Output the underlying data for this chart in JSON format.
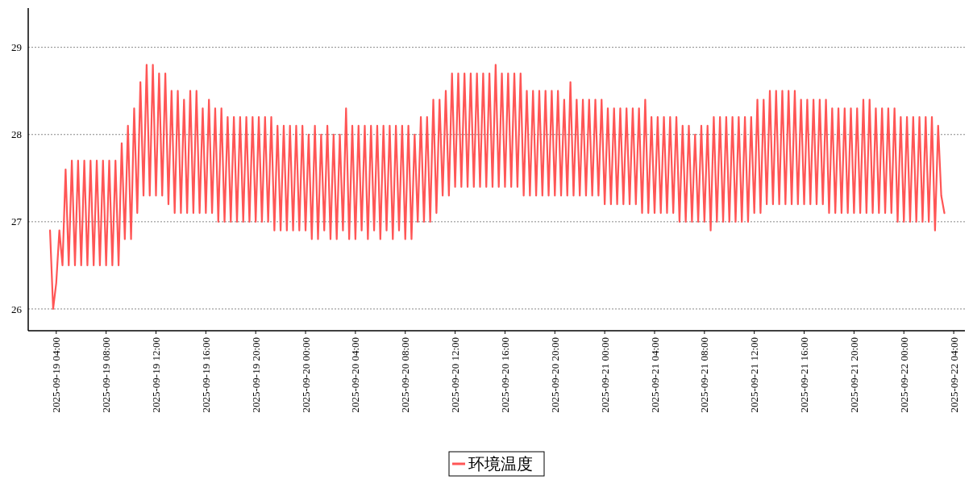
{
  "chart_data": {
    "type": "line",
    "x": [
      "2025-09-19T03:30",
      "2025-09-19T03:45",
      "2025-09-19T04:00",
      "2025-09-19T04:15",
      "2025-09-19T04:30",
      "2025-09-19T04:45",
      "2025-09-19T05:00",
      "2025-09-19T05:15",
      "2025-09-19T05:30",
      "2025-09-19T05:45",
      "2025-09-19T06:00",
      "2025-09-19T06:15",
      "2025-09-19T06:30",
      "2025-09-19T06:45",
      "2025-09-19T07:00",
      "2025-09-19T07:15",
      "2025-09-19T07:30",
      "2025-09-19T07:45",
      "2025-09-19T08:00",
      "2025-09-19T08:15",
      "2025-09-19T08:30",
      "2025-09-19T08:45",
      "2025-09-19T09:00",
      "2025-09-19T09:15",
      "2025-09-19T09:30",
      "2025-09-19T09:45",
      "2025-09-19T10:00",
      "2025-09-19T10:15",
      "2025-09-19T10:30",
      "2025-09-19T10:45",
      "2025-09-19T11:00",
      "2025-09-19T11:15",
      "2025-09-19T11:30",
      "2025-09-19T11:45",
      "2025-09-19T12:00",
      "2025-09-19T12:15",
      "2025-09-19T12:30",
      "2025-09-19T12:45",
      "2025-09-19T13:00",
      "2025-09-19T13:15",
      "2025-09-19T13:30",
      "2025-09-19T13:45",
      "2025-09-19T14:00",
      "2025-09-19T14:15",
      "2025-09-19T14:30",
      "2025-09-19T14:45",
      "2025-09-19T15:00",
      "2025-09-19T15:15",
      "2025-09-19T15:30",
      "2025-09-19T15:45",
      "2025-09-19T16:00",
      "2025-09-19T16:15",
      "2025-09-19T16:30",
      "2025-09-19T16:45",
      "2025-09-19T17:00",
      "2025-09-19T17:15",
      "2025-09-19T17:30",
      "2025-09-19T17:45",
      "2025-09-19T18:00",
      "2025-09-19T18:15",
      "2025-09-19T18:30",
      "2025-09-19T18:45",
      "2025-09-19T19:00",
      "2025-09-19T19:15",
      "2025-09-19T19:30",
      "2025-09-19T19:45",
      "2025-09-19T20:00",
      "2025-09-19T20:15",
      "2025-09-19T20:30",
      "2025-09-19T20:45",
      "2025-09-19T21:00",
      "2025-09-19T21:15",
      "2025-09-19T21:30",
      "2025-09-19T21:45",
      "2025-09-19T22:00",
      "2025-09-19T22:15",
      "2025-09-19T22:30",
      "2025-09-19T22:45",
      "2025-09-19T23:00",
      "2025-09-19T23:15",
      "2025-09-19T23:30",
      "2025-09-19T23:45",
      "2025-09-20T00:00",
      "2025-09-20T00:15",
      "2025-09-20T00:30",
      "2025-09-20T00:45",
      "2025-09-20T01:00",
      "2025-09-20T01:15",
      "2025-09-20T01:30",
      "2025-09-20T01:45",
      "2025-09-20T02:00",
      "2025-09-20T02:15",
      "2025-09-20T02:30",
      "2025-09-20T02:45",
      "2025-09-20T03:00",
      "2025-09-20T03:15",
      "2025-09-20T03:30",
      "2025-09-20T03:45",
      "2025-09-20T04:00",
      "2025-09-20T04:15",
      "2025-09-20T04:30",
      "2025-09-20T04:45",
      "2025-09-20T05:00",
      "2025-09-20T05:15",
      "2025-09-20T05:30",
      "2025-09-20T05:45",
      "2025-09-20T06:00",
      "2025-09-20T06:15",
      "2025-09-20T06:30",
      "2025-09-20T06:45",
      "2025-09-20T07:00",
      "2025-09-20T07:15",
      "2025-09-20T07:30",
      "2025-09-20T07:45",
      "2025-09-20T08:00",
      "2025-09-20T08:15",
      "2025-09-20T08:30",
      "2025-09-20T08:45",
      "2025-09-20T09:00",
      "2025-09-20T09:15",
      "2025-09-20T09:30",
      "2025-09-20T09:45",
      "2025-09-20T10:00",
      "2025-09-20T10:15",
      "2025-09-20T10:30",
      "2025-09-20T10:45",
      "2025-09-20T11:00",
      "2025-09-20T11:15",
      "2025-09-20T11:30",
      "2025-09-20T11:45",
      "2025-09-20T12:00",
      "2025-09-20T12:15",
      "2025-09-20T12:30",
      "2025-09-20T12:45",
      "2025-09-20T13:00",
      "2025-09-20T13:15",
      "2025-09-20T13:30",
      "2025-09-20T13:45",
      "2025-09-20T14:00",
      "2025-09-20T14:15",
      "2025-09-20T14:30",
      "2025-09-20T14:45",
      "2025-09-20T15:00",
      "2025-09-20T15:15",
      "2025-09-20T15:30",
      "2025-09-20T15:45",
      "2025-09-20T16:00",
      "2025-09-20T16:15",
      "2025-09-20T16:30",
      "2025-09-20T16:45",
      "2025-09-20T17:00",
      "2025-09-20T17:15",
      "2025-09-20T17:30",
      "2025-09-20T17:45",
      "2025-09-20T18:00",
      "2025-09-20T18:15",
      "2025-09-20T18:30",
      "2025-09-20T18:45",
      "2025-09-20T19:00",
      "2025-09-20T19:15",
      "2025-09-20T19:30",
      "2025-09-20T19:45",
      "2025-09-20T20:00",
      "2025-09-20T20:15",
      "2025-09-20T20:30",
      "2025-09-20T20:45",
      "2025-09-20T21:00",
      "2025-09-20T21:15",
      "2025-09-20T21:30",
      "2025-09-20T21:45",
      "2025-09-20T22:00",
      "2025-09-20T22:15",
      "2025-09-20T22:30",
      "2025-09-20T22:45",
      "2025-09-20T23:00",
      "2025-09-20T23:15",
      "2025-09-20T23:30",
      "2025-09-20T23:45",
      "2025-09-21T00:00",
      "2025-09-21T00:15",
      "2025-09-21T00:30",
      "2025-09-21T00:45",
      "2025-09-21T01:00",
      "2025-09-21T01:15",
      "2025-09-21T01:30",
      "2025-09-21T01:45",
      "2025-09-21T02:00",
      "2025-09-21T02:15",
      "2025-09-21T02:30",
      "2025-09-21T02:45",
      "2025-09-21T03:00",
      "2025-09-21T03:15",
      "2025-09-21T03:30",
      "2025-09-21T03:45",
      "2025-09-21T04:00",
      "2025-09-21T04:15",
      "2025-09-21T04:30",
      "2025-09-21T04:45",
      "2025-09-21T05:00",
      "2025-09-21T05:15",
      "2025-09-21T05:30",
      "2025-09-21T05:45",
      "2025-09-21T06:00",
      "2025-09-21T06:15",
      "2025-09-21T06:30",
      "2025-09-21T06:45",
      "2025-09-21T07:00",
      "2025-09-21T07:15",
      "2025-09-21T07:30",
      "2025-09-21T07:45",
      "2025-09-21T08:00",
      "2025-09-21T08:15",
      "2025-09-21T08:30",
      "2025-09-21T08:45",
      "2025-09-21T09:00",
      "2025-09-21T09:15",
      "2025-09-21T09:30",
      "2025-09-21T09:45",
      "2025-09-21T10:00",
      "2025-09-21T10:15",
      "2025-09-21T10:30",
      "2025-09-21T10:45",
      "2025-09-21T11:00",
      "2025-09-21T11:15",
      "2025-09-21T11:30",
      "2025-09-21T11:45",
      "2025-09-21T12:00",
      "2025-09-21T12:15",
      "2025-09-21T12:30",
      "2025-09-21T12:45",
      "2025-09-21T13:00",
      "2025-09-21T13:15",
      "2025-09-21T13:30",
      "2025-09-21T13:45",
      "2025-09-21T14:00",
      "2025-09-21T14:15",
      "2025-09-21T14:30",
      "2025-09-21T14:45",
      "2025-09-21T15:00",
      "2025-09-21T15:15",
      "2025-09-21T15:30",
      "2025-09-21T15:45",
      "2025-09-21T16:00",
      "2025-09-21T16:15",
      "2025-09-21T16:30",
      "2025-09-21T16:45",
      "2025-09-21T17:00",
      "2025-09-21T17:15",
      "2025-09-21T17:30",
      "2025-09-21T17:45",
      "2025-09-21T18:00",
      "2025-09-21T18:15",
      "2025-09-21T18:30",
      "2025-09-21T18:45",
      "2025-09-21T19:00",
      "2025-09-21T19:15",
      "2025-09-21T19:30",
      "2025-09-21T19:45",
      "2025-09-21T20:00",
      "2025-09-21T20:15",
      "2025-09-21T20:30",
      "2025-09-21T20:45",
      "2025-09-21T21:00",
      "2025-09-21T21:15",
      "2025-09-21T21:30",
      "2025-09-21T21:45",
      "2025-09-21T22:00",
      "2025-09-21T22:15",
      "2025-09-21T22:30",
      "2025-09-21T22:45",
      "2025-09-21T23:00",
      "2025-09-21T23:15",
      "2025-09-21T23:30",
      "2025-09-21T23:45",
      "2025-09-22T00:00",
      "2025-09-22T00:15",
      "2025-09-22T00:30",
      "2025-09-22T00:45",
      "2025-09-22T01:00",
      "2025-09-22T01:15",
      "2025-09-22T01:30",
      "2025-09-22T01:45",
      "2025-09-22T02:00",
      "2025-09-22T02:15",
      "2025-09-22T02:30",
      "2025-09-22T02:45",
      "2025-09-22T03:00",
      "2025-09-22T03:15"
    ],
    "series": [
      {
        "name": "环境温度",
        "color": "#ff5555",
        "values": [
          26.9,
          26.0,
          26.3,
          26.9,
          26.5,
          27.6,
          26.5,
          27.7,
          26.5,
          27.7,
          26.5,
          27.7,
          26.5,
          27.7,
          26.5,
          27.7,
          26.5,
          27.7,
          26.5,
          27.7,
          26.5,
          27.7,
          26.5,
          27.9,
          26.8,
          28.1,
          26.8,
          28.3,
          27.1,
          28.6,
          27.3,
          28.8,
          27.3,
          28.8,
          27.3,
          28.7,
          27.3,
          28.7,
          27.2,
          28.5,
          27.1,
          28.5,
          27.1,
          28.4,
          27.1,
          28.5,
          27.1,
          28.5,
          27.1,
          28.3,
          27.1,
          28.4,
          27.1,
          28.3,
          27.0,
          28.3,
          27.0,
          28.2,
          27.0,
          28.2,
          27.0,
          28.2,
          27.0,
          28.2,
          27.0,
          28.2,
          27.0,
          28.2,
          27.0,
          28.2,
          27.0,
          28.2,
          26.9,
          28.1,
          26.9,
          28.1,
          26.9,
          28.1,
          26.9,
          28.1,
          26.9,
          28.1,
          26.9,
          28.0,
          26.8,
          28.1,
          26.8,
          28.0,
          26.9,
          28.1,
          26.8,
          28.0,
          26.8,
          28.0,
          26.9,
          28.3,
          26.8,
          28.1,
          26.8,
          28.1,
          26.9,
          28.1,
          26.8,
          28.1,
          26.9,
          28.1,
          26.8,
          28.1,
          26.9,
          28.1,
          26.8,
          28.1,
          26.9,
          28.1,
          26.8,
          28.1,
          26.8,
          28.0,
          27.0,
          28.2,
          27.0,
          28.2,
          27.0,
          28.4,
          27.1,
          28.4,
          27.3,
          28.5,
          27.3,
          28.7,
          27.4,
          28.7,
          27.4,
          28.7,
          27.4,
          28.7,
          27.4,
          28.7,
          27.4,
          28.7,
          27.4,
          28.7,
          27.4,
          28.8,
          27.4,
          28.7,
          27.4,
          28.7,
          27.4,
          28.7,
          27.4,
          28.7,
          27.3,
          28.5,
          27.3,
          28.5,
          27.3,
          28.5,
          27.3,
          28.5,
          27.3,
          28.5,
          27.3,
          28.5,
          27.3,
          28.4,
          27.3,
          28.6,
          27.3,
          28.4,
          27.3,
          28.4,
          27.3,
          28.4,
          27.3,
          28.4,
          27.3,
          28.4,
          27.2,
          28.3,
          27.2,
          28.3,
          27.2,
          28.3,
          27.2,
          28.3,
          27.2,
          28.3,
          27.2,
          28.3,
          27.1,
          28.4,
          27.1,
          28.2,
          27.1,
          28.2,
          27.1,
          28.2,
          27.1,
          28.2,
          27.1,
          28.2,
          27.0,
          28.1,
          27.0,
          28.1,
          27.0,
          28.0,
          27.0,
          28.1,
          27.0,
          28.1,
          26.9,
          28.2,
          27.0,
          28.2,
          27.0,
          28.2,
          27.0,
          28.2,
          27.0,
          28.2,
          27.0,
          28.2,
          27.0,
          28.2,
          27.1,
          28.4,
          27.1,
          28.4,
          27.2,
          28.5,
          27.2,
          28.5,
          27.2,
          28.5,
          27.2,
          28.5,
          27.2,
          28.5,
          27.2,
          28.4,
          27.2,
          28.4,
          27.2,
          28.4,
          27.2,
          28.4,
          27.2,
          28.4,
          27.1,
          28.3,
          27.1,
          28.3,
          27.1,
          28.3,
          27.1,
          28.3,
          27.1,
          28.3,
          27.1,
          28.4,
          27.1,
          28.4,
          27.1,
          28.3,
          27.1,
          28.3,
          27.1,
          28.3,
          27.1,
          28.3,
          27.0,
          28.2,
          27.0,
          28.2,
          27.0,
          28.2,
          27.0,
          28.2,
          27.0,
          28.2,
          27.0,
          28.2,
          26.9,
          28.1,
          27.3,
          27.1
        ]
      }
    ],
    "xlim": [
      "2025-09-19T01:45",
      "2025-09-22T04:54"
    ],
    "xticks": [
      {
        "value": "2025-09-19T04:00",
        "label": "2025-09-19 04:00"
      },
      {
        "value": "2025-09-19T08:00",
        "label": "2025-09-19 08:00"
      },
      {
        "value": "2025-09-19T12:00",
        "label": "2025-09-19 12:00"
      },
      {
        "value": "2025-09-19T16:00",
        "label": "2025-09-19 16:00"
      },
      {
        "value": "2025-09-19T20:00",
        "label": "2025-09-19 20:00"
      },
      {
        "value": "2025-09-20T00:00",
        "label": "2025-09-20 00:00"
      },
      {
        "value": "2025-09-20T04:00",
        "label": "2025-09-20 04:00"
      },
      {
        "value": "2025-09-20T08:00",
        "label": "2025-09-20 08:00"
      },
      {
        "value": "2025-09-20T12:00",
        "label": "2025-09-20 12:00"
      },
      {
        "value": "2025-09-20T16:00",
        "label": "2025-09-20 16:00"
      },
      {
        "value": "2025-09-20T20:00",
        "label": "2025-09-20 20:00"
      },
      {
        "value": "2025-09-21T00:00",
        "label": "2025-09-21 00:00"
      },
      {
        "value": "2025-09-21T04:00",
        "label": "2025-09-21 04:00"
      },
      {
        "value": "2025-09-21T08:00",
        "label": "2025-09-21 08:00"
      },
      {
        "value": "2025-09-21T12:00",
        "label": "2025-09-21 12:00"
      },
      {
        "value": "2025-09-21T16:00",
        "label": "2025-09-21 16:00"
      },
      {
        "value": "2025-09-21T20:00",
        "label": "2025-09-21 20:00"
      },
      {
        "value": "2025-09-22T00:00",
        "label": "2025-09-22 00:00"
      },
      {
        "value": "2025-09-22T04:00",
        "label": "2025-09-22 04:00"
      }
    ],
    "ylim": [
      25.75,
      29.45
    ],
    "yticks": [
      26,
      27,
      28,
      29
    ],
    "grid": "y",
    "legend": "bottom",
    "line_style": "solid"
  }
}
